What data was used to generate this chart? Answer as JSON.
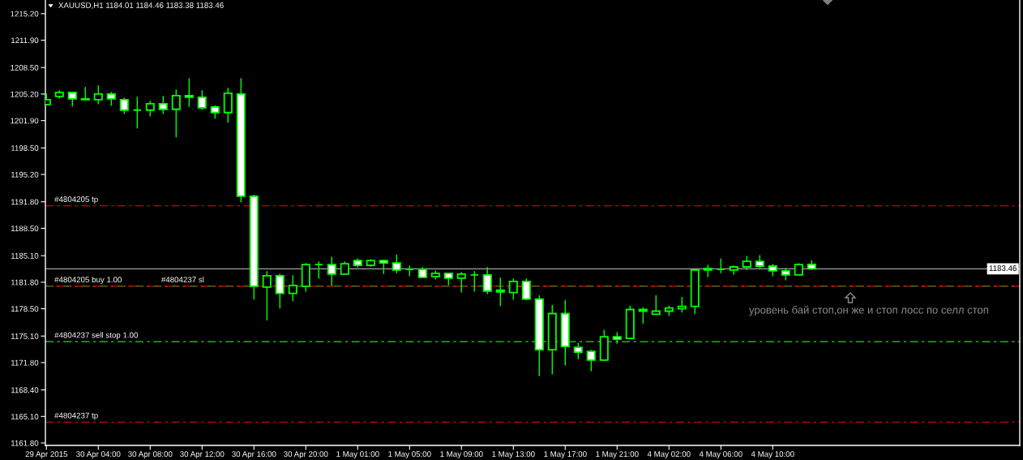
{
  "chart_data": {
    "type": "candlestick",
    "title": "XAUUSD,H1 1184.01 1184.46 1183.38 1183.46",
    "categories": [
      "29 Apr 2015",
      null,
      null,
      null,
      "30 Apr 04:00",
      null,
      null,
      null,
      "30 Apr 08:00",
      null,
      null,
      null,
      "30 Apr 12:00",
      null,
      null,
      null,
      "30 Apr 16:00",
      null,
      null,
      null,
      "30 Apr 20:00",
      null,
      null,
      null,
      "1 May 01:00",
      null,
      null,
      null,
      "1 May 05:00",
      null,
      null,
      null,
      "1 May 09:00",
      null,
      null,
      null,
      "1 May 13:00",
      null,
      null,
      null,
      "1 May 17:00",
      null,
      null,
      null,
      "1 May 21:00",
      null,
      null,
      null,
      "4 May 02:00",
      null,
      null,
      null,
      "4 May 06:00",
      null,
      null,
      null,
      "4 May 10:00",
      null,
      null,
      null
    ],
    "ohlc": [
      [
        1203.9,
        1205.2,
        1203.9,
        1204.5
      ],
      [
        1204.9,
        1205.6,
        1204.7,
        1205.4
      ],
      [
        1205.4,
        1205.4,
        1203.7,
        1204.6
      ],
      [
        1204.5,
        1206.0,
        1204.5,
        1204.6
      ],
      [
        1204.5,
        1206.2,
        1204.0,
        1205.2
      ],
      [
        1205.2,
        1205.4,
        1203.8,
        1204.6
      ],
      [
        1204.5,
        1204.7,
        1202.8,
        1203.2
      ],
      [
        1203.2,
        1204.8,
        1201.0,
        1203.2
      ],
      [
        1203.2,
        1204.3,
        1202.5,
        1204.0
      ],
      [
        1204.0,
        1204.9,
        1202.8,
        1203.3
      ],
      [
        1203.3,
        1205.7,
        1199.9,
        1205.0
      ],
      [
        1205.0,
        1207.1,
        1203.7,
        1204.8
      ],
      [
        1204.8,
        1205.6,
        1203.3,
        1203.5
      ],
      [
        1203.6,
        1203.7,
        1202.2,
        1202.9
      ],
      [
        1202.9,
        1205.9,
        1201.7,
        1205.3
      ],
      [
        1205.2,
        1207.1,
        1191.8,
        1192.5
      ],
      [
        1192.5,
        1192.6,
        1179.7,
        1181.3
      ],
      [
        1181.2,
        1183.1,
        1177.1,
        1182.6
      ],
      [
        1182.6,
        1182.8,
        1178.6,
        1180.4
      ],
      [
        1180.4,
        1182.6,
        1179.5,
        1181.4
      ],
      [
        1181.3,
        1184.1,
        1180.7,
        1184.0
      ],
      [
        1184.0,
        1184.3,
        1182.3,
        1184.0
      ],
      [
        1184.0,
        1184.9,
        1181.4,
        1182.8
      ],
      [
        1182.8,
        1184.3,
        1182.8,
        1184.1
      ],
      [
        1184.5,
        1184.7,
        1183.7,
        1183.9
      ],
      [
        1183.9,
        1184.6,
        1183.8,
        1184.5
      ],
      [
        1184.5,
        1184.5,
        1182.9,
        1184.2
      ],
      [
        1184.2,
        1185.2,
        1183.0,
        1183.3
      ],
      [
        1183.4,
        1183.8,
        1182.6,
        1183.4
      ],
      [
        1183.4,
        1183.6,
        1182.4,
        1182.4
      ],
      [
        1182.5,
        1183.2,
        1182.2,
        1182.9
      ],
      [
        1182.9,
        1182.9,
        1181.5,
        1182.3
      ],
      [
        1182.3,
        1183.0,
        1180.6,
        1182.8
      ],
      [
        1182.7,
        1183.1,
        1180.7,
        1182.7
      ],
      [
        1182.7,
        1183.6,
        1180.4,
        1180.7
      ],
      [
        1180.8,
        1182.3,
        1178.9,
        1180.6
      ],
      [
        1180.5,
        1182.2,
        1179.7,
        1181.9
      ],
      [
        1181.9,
        1182.2,
        1179.6,
        1179.7
      ],
      [
        1179.7,
        1180.1,
        1170.2,
        1173.4
      ],
      [
        1173.4,
        1178.9,
        1170.4,
        1177.9
      ],
      [
        1177.9,
        1179.5,
        1171.5,
        1173.8
      ],
      [
        1173.7,
        1174.2,
        1172.3,
        1173.1
      ],
      [
        1173.2,
        1173.3,
        1170.8,
        1172.1
      ],
      [
        1172.1,
        1175.8,
        1172.1,
        1175.0
      ],
      [
        1175.0,
        1175.5,
        1174.2,
        1174.7
      ],
      [
        1174.8,
        1178.8,
        1174.8,
        1178.4
      ],
      [
        1178.4,
        1178.6,
        1176.7,
        1178.2
      ],
      [
        1177.8,
        1180.1,
        1177.8,
        1178.2
      ],
      [
        1178.2,
        1178.8,
        1177.7,
        1178.6
      ],
      [
        1178.5,
        1179.9,
        1178.1,
        1178.8
      ],
      [
        1178.8,
        1183.3,
        1177.9,
        1183.3
      ],
      [
        1183.3,
        1183.9,
        1182.5,
        1183.5
      ],
      [
        1183.4,
        1184.7,
        1183.0,
        1183.4
      ],
      [
        1183.3,
        1183.8,
        1182.8,
        1183.7
      ],
      [
        1183.7,
        1185.0,
        1183.4,
        1184.4
      ],
      [
        1184.4,
        1185.1,
        1183.6,
        1183.8
      ],
      [
        1183.8,
        1184.0,
        1182.6,
        1183.2
      ],
      [
        1183.2,
        1183.5,
        1182.1,
        1182.7
      ],
      [
        1182.7,
        1184.1,
        1182.7,
        1184.0
      ],
      [
        1184.01,
        1184.46,
        1183.38,
        1183.46
      ]
    ],
    "color": "#00ff00",
    "colors": [
      "#000000",
      "#000000",
      "#ffffff",
      "#000000",
      "#000000",
      "#ffffff",
      "#ffffff",
      "#00ff00",
      "#000000",
      "#ffffff",
      "#000000",
      "#ffffff",
      "#ffffff",
      "#ffffff",
      "#000000",
      "#ffffff",
      "#ffffff",
      "#000000",
      "#ffffff",
      "#000000",
      "#000000",
      "#00ff00",
      "#ffffff",
      "#000000",
      "#ffffff",
      "#000000",
      "#ffffff",
      "#ffffff",
      "#00ff00",
      "#ffffff",
      "#000000",
      "#ffffff",
      "#000000",
      "#00ff00",
      "#ffffff",
      "#ffffff",
      "#000000",
      "#ffffff",
      "#ffffff",
      "#000000",
      "#ffffff",
      "#ffffff",
      "#ffffff",
      "#000000",
      "#ffffff",
      "#000000",
      "#ffffff",
      "#000000",
      "#000000",
      "#000000",
      "#000000",
      "#000000",
      "#00ff00",
      "#000000",
      "#000000",
      "#ffffff",
      "#ffffff",
      "#ffffff",
      "#000000",
      "#ffffff"
    ],
    "ylim": [
      1161.5,
      1216.9
    ],
    "yticks": [
      {
        "value": 1215.2,
        "label": "1215.20"
      },
      {
        "value": 1211.9,
        "label": "1211.90"
      },
      {
        "value": 1208.5,
        "label": "1208.50"
      },
      {
        "value": 1205.2,
        "label": "1205.20"
      },
      {
        "value": 1201.9,
        "label": "1201.90"
      },
      {
        "value": 1198.5,
        "label": "1198.50"
      },
      {
        "value": 1195.2,
        "label": "1195.20"
      },
      {
        "value": 1191.8,
        "label": "1191.80"
      },
      {
        "value": 1188.5,
        "label": "1188.50"
      },
      {
        "value": 1185.1,
        "label": "1185.10"
      },
      {
        "value": 1181.8,
        "label": "1181.80"
      },
      {
        "value": 1178.5,
        "label": "1178.50"
      },
      {
        "value": 1175.1,
        "label": "1175.10"
      },
      {
        "value": 1171.8,
        "label": "1171.80"
      },
      {
        "value": 1168.4,
        "label": "1168.40"
      },
      {
        "value": 1165.1,
        "label": "1165.10"
      },
      {
        "value": 1161.8,
        "label": "1161.80"
      }
    ],
    "ref_lines": [
      {
        "axis": "y",
        "value": 1191.3,
        "label": "#4804205 tp",
        "color": "#ff0000",
        "line_style": "dashed"
      },
      {
        "axis": "y",
        "value": 1183.46,
        "label": "1183.46",
        "color": "#a0a0a8",
        "line_style": "solid"
      },
      {
        "axis": "y",
        "value": 1181.3,
        "label": "#4804205 buy 1.00",
        "color": "#32cd32",
        "line_style": "dashed"
      },
      {
        "axis": "y",
        "value": 1181.3,
        "label": "#4804237 sl",
        "color": "#ff0000",
        "line_style": "dashed"
      },
      {
        "axis": "y",
        "value": 1174.4,
        "label": "#4804237 sell stop 1.00",
        "color": "#32cd32",
        "line_style": "dashed"
      },
      {
        "axis": "y",
        "value": 1164.4,
        "label": "#4804237 tp",
        "color": "#ff0000",
        "line_style": "dashed"
      }
    ],
    "annotations": [
      "уровень бай стоп,он же и стоп лосс по селл стоп"
    ]
  }
}
